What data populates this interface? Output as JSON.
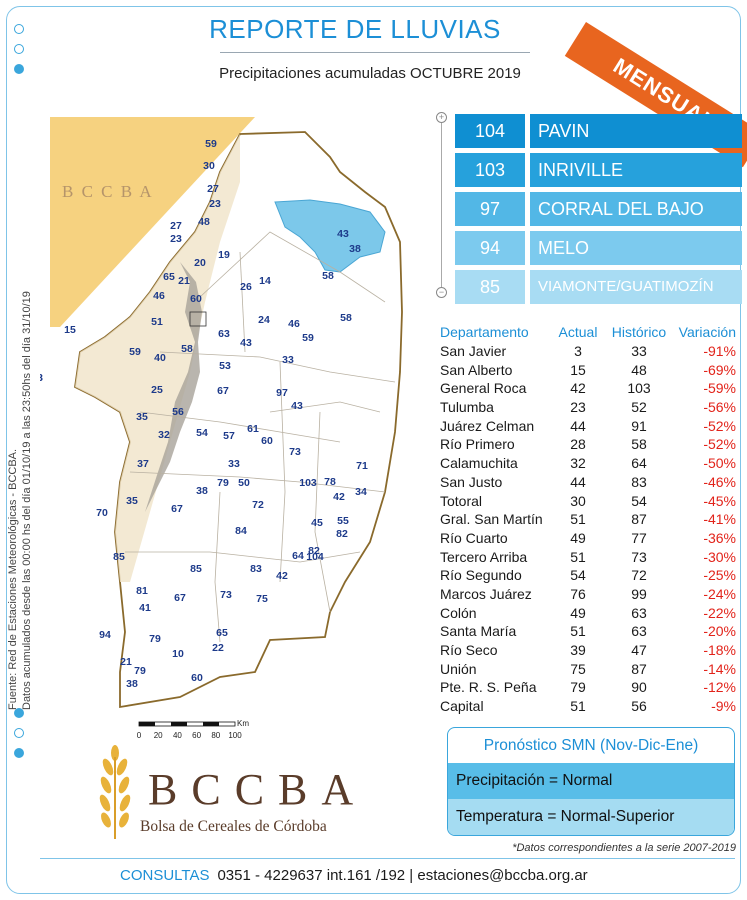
{
  "header": {
    "title": "REPORTE DE LLUVIAS",
    "subtitle": "Precipitaciones acumuladas  OCTUBRE 2019",
    "badge": "MENSUAL"
  },
  "source_note": {
    "line1": "Fuente: Red de Estaciones Meteorológicas - BCCBA.",
    "line2": "Datos acumulados desde las 00:00 hs del día 01/10/19 a las 23:50hs del día 31/10/19"
  },
  "map": {
    "watermark": "B C C B A",
    "scale_unit": "Km",
    "scale_ticks": [
      "0",
      "20",
      "40",
      "60",
      "80",
      "100"
    ],
    "station_values": [
      "59",
      "30",
      "27",
      "23",
      "27",
      "48",
      "23",
      "43",
      "38",
      "20",
      "19",
      "65",
      "21",
      "14",
      "58",
      "46",
      "60",
      "26",
      "51",
      "24",
      "46",
      "58",
      "15",
      "59",
      "40",
      "58",
      "63",
      "43",
      "59",
      "33",
      "3",
      "53",
      "25",
      "67",
      "97",
      "43",
      "35",
      "56",
      "32",
      "54",
      "57",
      "61",
      "60",
      "73",
      "37",
      "33",
      "71",
      "38",
      "50",
      "79",
      "103",
      "78",
      "34",
      "35",
      "67",
      "42",
      "70",
      "72",
      "55",
      "45",
      "82",
      "85",
      "84",
      "82",
      "64",
      "104",
      "85",
      "83",
      "42",
      "81",
      "67",
      "73",
      "75",
      "41",
      "94",
      "65",
      "79",
      "22",
      "21",
      "79",
      "10",
      "38",
      "60"
    ]
  },
  "ranking": [
    {
      "value": "104",
      "name": "PAVIN",
      "color": "#0f8fd2"
    },
    {
      "value": "103",
      "name": "INRIVILLE",
      "color": "#26a1dc"
    },
    {
      "value": "97",
      "name": "CORRAL DEL BAJO",
      "color": "#52b7e6"
    },
    {
      "value": "94",
      "name": "MELO",
      "color": "#7ccaee"
    },
    {
      "value": "85",
      "name": "VIAMONTE/GUATIMOZÍN",
      "color": "#a8dcf3"
    }
  ],
  "table": {
    "headers": [
      "Departamento",
      "Actual",
      "Histórico",
      "Variación"
    ],
    "rows": [
      [
        "San Javier",
        "3",
        "33",
        "-91%"
      ],
      [
        "San Alberto",
        "15",
        "48",
        "-69%"
      ],
      [
        "General Roca",
        "42",
        "103",
        "-59%"
      ],
      [
        "Tulumba",
        "23",
        "52",
        "-56%"
      ],
      [
        "Juárez Celman",
        "44",
        "91",
        "-52%"
      ],
      [
        "Río Primero",
        "28",
        "58",
        "-52%"
      ],
      [
        "Calamuchita",
        "32",
        "64",
        "-50%"
      ],
      [
        "San Justo",
        "44",
        "83",
        "-46%"
      ],
      [
        "Totoral",
        "30",
        "54",
        "-45%"
      ],
      [
        "Gral. San Martín",
        "51",
        "87",
        "-41%"
      ],
      [
        "Río Cuarto",
        "49",
        "77",
        "-36%"
      ],
      [
        "Tercero Arriba",
        "51",
        "73",
        "-30%"
      ],
      [
        "Río Segundo",
        "54",
        "72",
        "-25%"
      ],
      [
        "Marcos Juárez",
        "76",
        "99",
        "-24%"
      ],
      [
        "Colón",
        "49",
        "63",
        "-22%"
      ],
      [
        "Santa María",
        "51",
        "63",
        "-20%"
      ],
      [
        "Río Seco",
        "39",
        "47",
        "-18%"
      ],
      [
        "Unión",
        "75",
        "87",
        "-14%"
      ],
      [
        "Pte. R. S. Peña",
        "79",
        "90",
        "-12%"
      ],
      [
        "Capital",
        "51",
        "56",
        "-9%"
      ]
    ]
  },
  "forecast": {
    "title": "Pronóstico SMN (Nov-Dic-Ene)",
    "precip": "Precipitación = Normal",
    "temp": "Temperatura = Normal-Superior"
  },
  "footnote": "*Datos correspondientes a la serie 2007-2019",
  "logo": {
    "letters": "BCCBA",
    "name": "Bolsa de Cereales de Córdoba"
  },
  "contact": {
    "label": "CONSULTAS",
    "text": "0351 - 4229637 int.161 /192 | estaciones@bccba.org.ar"
  },
  "colors": {
    "accent": "#1c8fd6",
    "badge": "#e8651f",
    "negative": "#e2231a",
    "brand_brown": "#5a3c2a"
  }
}
